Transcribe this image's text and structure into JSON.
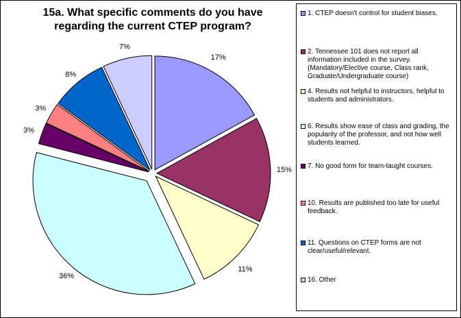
{
  "chart_data": {
    "type": "pie",
    "title": "15a. What specific comments do you have\nregarding the current CTEP program?",
    "slices": [
      {
        "label": "1. CTEP doesn't control for student biases.",
        "value": 17,
        "value_label": "17%",
        "color": "#9999ff"
      },
      {
        "label": "2. Tennessee 101 does not report all information included in the survey. (Mandatory/Elective course, Class rank, Graduate/Undergraduate course)",
        "value": 15,
        "value_label": "15%",
        "color": "#993366"
      },
      {
        "label": "4. Results not helpful to instructors, helpful to students and administrators.",
        "value": 11,
        "value_label": "11%",
        "color": "#ffffcc"
      },
      {
        "label": "6. Results show ease of class and grading, the popularity of the professor, and not how well students learned.",
        "value": 36,
        "value_label": "36%",
        "color": "#ccffff"
      },
      {
        "label": "7. No good form for team-taught courses.",
        "value": 3,
        "value_label": "3%",
        "color": "#660066"
      },
      {
        "label": "10.  Results are published too late for useful feedback.",
        "value": 3,
        "value_label": "3%",
        "color": "#ff8080"
      },
      {
        "label": "11.  Questions on CTEP forms are not clear/useful/relevant.",
        "value": 8,
        "value_label": "8%",
        "color": "#0066cc"
      },
      {
        "label": "16. Other",
        "value": 7,
        "value_label": "7%",
        "color": "#ccccff"
      }
    ],
    "legend_position": "right"
  }
}
